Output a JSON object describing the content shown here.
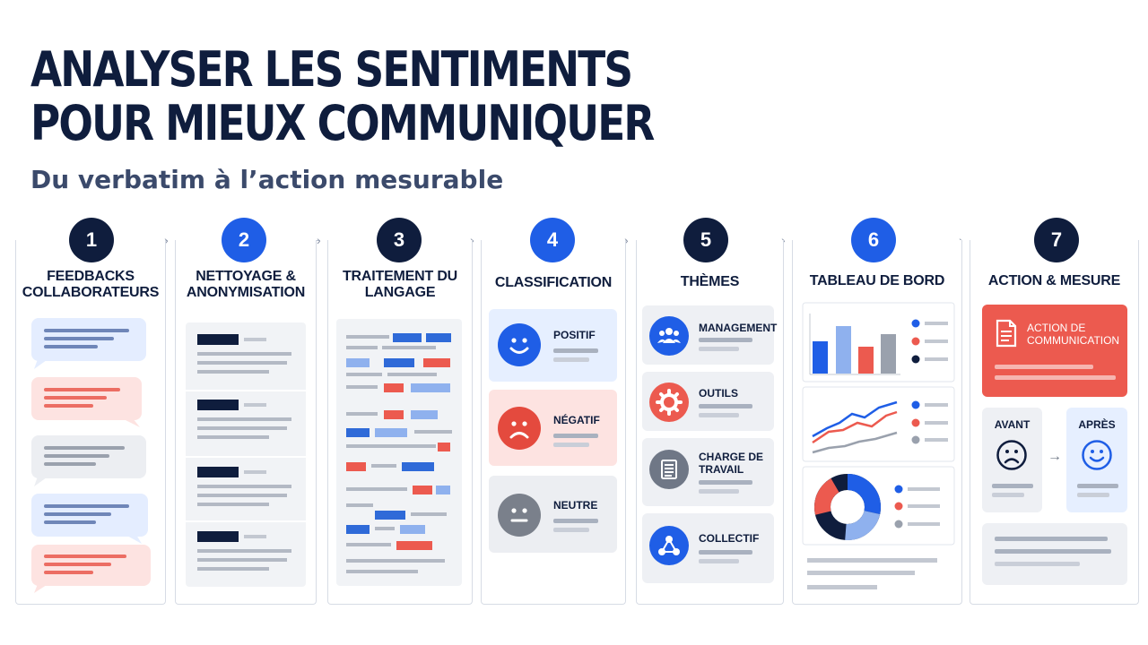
{
  "header": {
    "title_line1": "ANALYSER LES SENTIMENTS",
    "title_line2": "POUR MIEUX COMMUNIQUER",
    "subtitle": "Du verbatim à l’action mesurable"
  },
  "steps": [
    {
      "number": "1",
      "title": "FEEDBACKS COLLABORATEURS"
    },
    {
      "number": "2",
      "title": "NETTOYAGE & ANONYMISATION"
    },
    {
      "number": "3",
      "title": "TRAITEMENT DU LANGAGE"
    },
    {
      "number": "4",
      "title": "CLASSIFICATION"
    },
    {
      "number": "5",
      "title": "THÈMES"
    },
    {
      "number": "6",
      "title": "TABLEAU DE BORD"
    },
    {
      "number": "7",
      "title": "ACTION & MESURE"
    }
  ],
  "classification": {
    "positive": "POSITIF",
    "negative": "NÉGATIF",
    "neutral": "NEUTRE"
  },
  "themes": [
    {
      "label": "MANAGEMENT",
      "icon": "people-icon",
      "color": "#1f5ee6"
    },
    {
      "label": "OUTILS",
      "icon": "gear-icon",
      "color": "#ec5a4f"
    },
    {
      "label": "CHARGE DE TRAVAIL",
      "icon": "document-icon",
      "color": "#6f7786"
    },
    {
      "label": "COLLECTIF",
      "icon": "network-icon",
      "color": "#1f5ee6"
    }
  ],
  "action": {
    "card_label": "ACTION DE COMMUNICATION",
    "before": "AVANT",
    "after": "APRÈS"
  },
  "colors": {
    "navy": "#0f1d3d",
    "blue": "#1f5ee6",
    "red": "#ec5a4f",
    "gray": "#9aa1ad",
    "light_blue": "#e6efff",
    "light_red": "#fde5e3"
  }
}
